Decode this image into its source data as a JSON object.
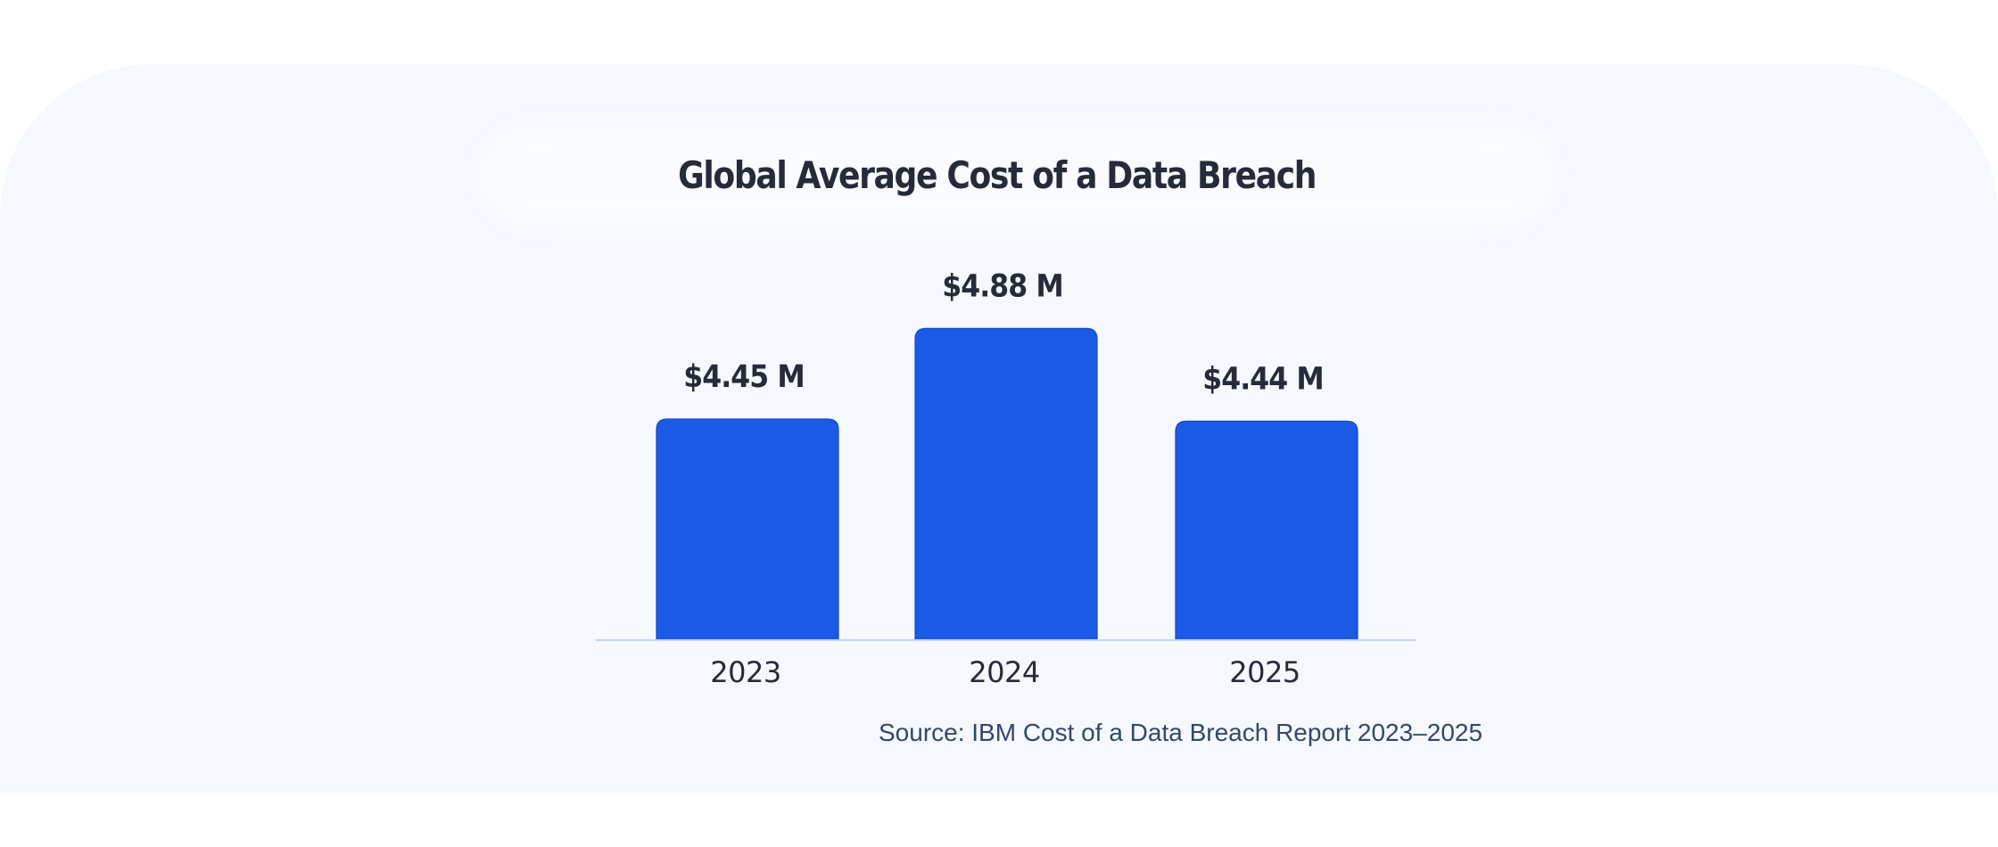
{
  "chart_data": {
    "type": "bar",
    "title": "Global Average Cost of a Data Breach",
    "categories": [
      "2023",
      "2024",
      "2025"
    ],
    "values": [
      4.45,
      4.88,
      4.44
    ],
    "value_labels": [
      "$4.45 M",
      "$4.88 M",
      "$4.44 M"
    ],
    "unit": "USD millions",
    "xlabel": "",
    "ylabel": "",
    "ylim": [
      3.4,
      5.0
    ],
    "grid": false,
    "legend": "none",
    "bar_color": "#1a5ae6",
    "source": "Source: IBM Cost of a Data Breach Report 2023–2025"
  }
}
